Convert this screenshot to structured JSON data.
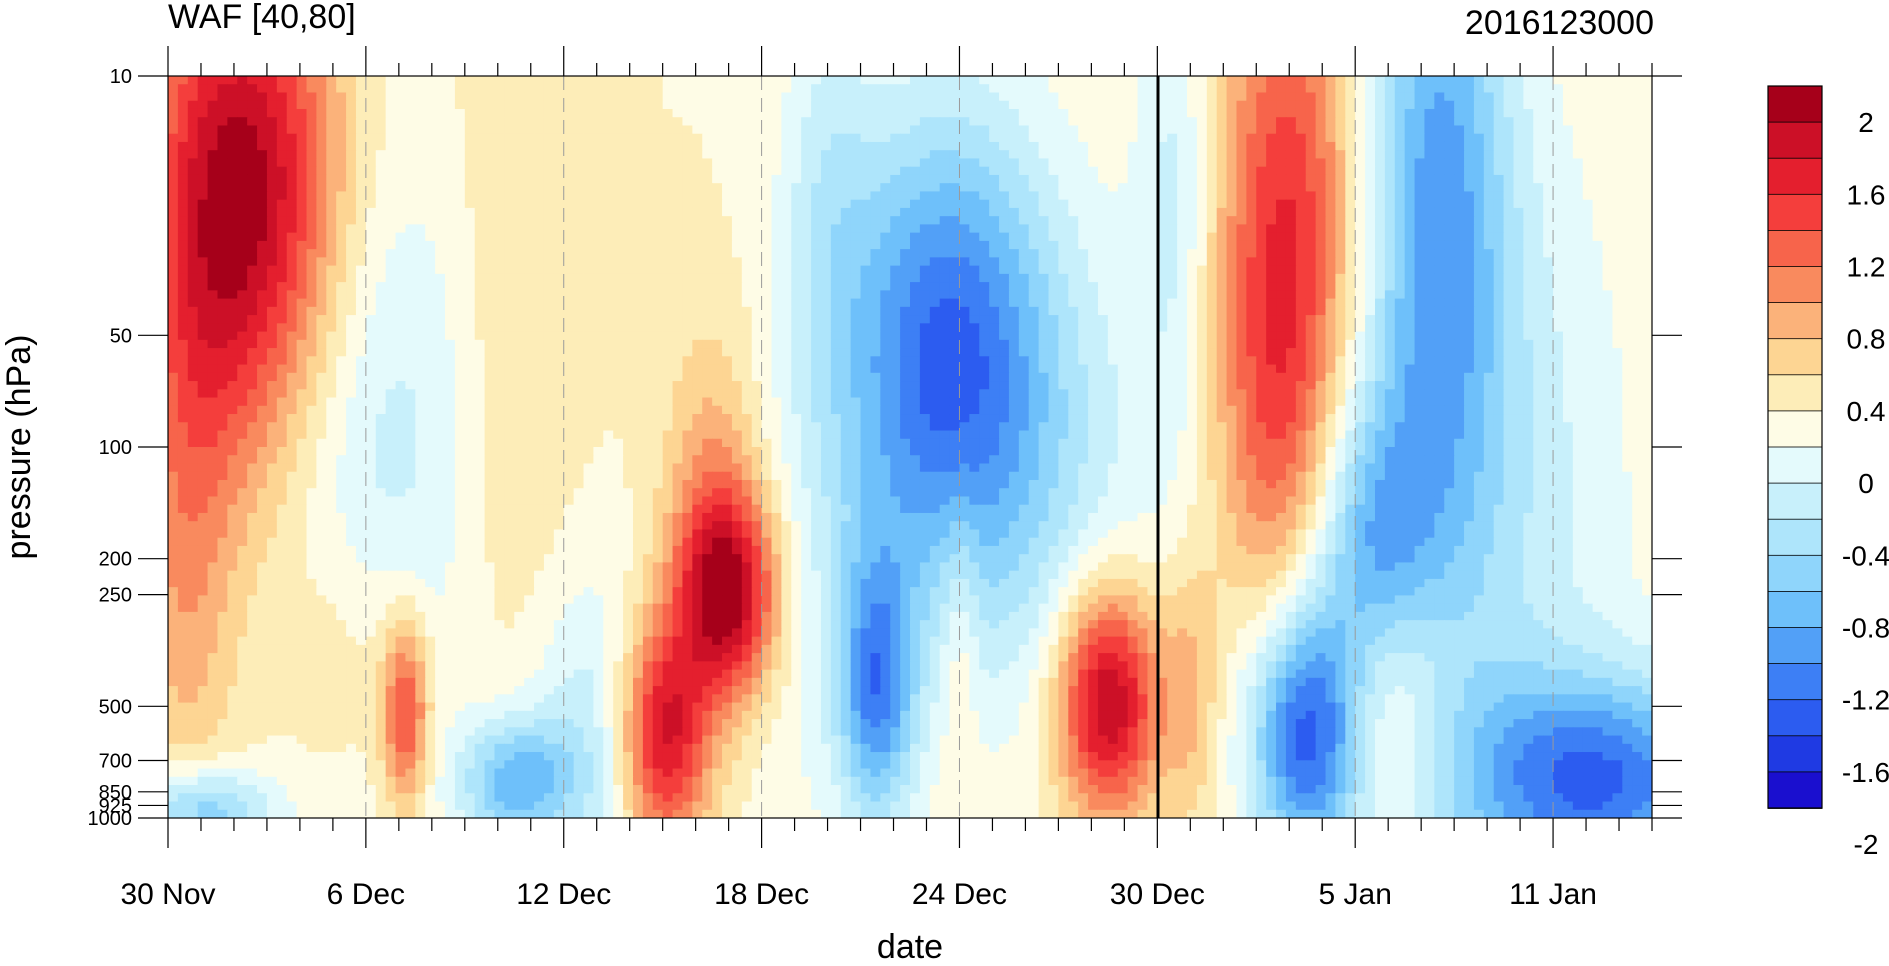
{
  "chart_data": {
    "type": "heatmap",
    "subtype": "filled-contour",
    "title": "WAF [40,80]",
    "timestamp_label": "2016123000",
    "xlabel": "date",
    "ylabel": "pressure (hPa)",
    "x_tick_labels": [
      "30 Nov",
      "6 Dec",
      "12 Dec",
      "18 Dec",
      "24 Dec",
      "30 Dec",
      "5 Jan",
      "11 Jan"
    ],
    "x_tick_days": [
      0,
      6,
      12,
      18,
      24,
      30,
      36,
      42
    ],
    "x_range_days": [
      0,
      45
    ],
    "y_tick_labels": [
      "10",
      "50",
      "100",
      "200",
      "250",
      "500",
      "700",
      "850",
      "925",
      "1000"
    ],
    "y_tick_values": [
      10,
      50,
      100,
      200,
      250,
      500,
      700,
      850,
      925,
      1000
    ],
    "y_range": [
      10,
      1000
    ],
    "y_scale": "log",
    "y_reversed": true,
    "colorbar": {
      "tick_labels": [
        "2",
        "1.6",
        "1.2",
        "0.8",
        "0.4",
        "0",
        "-0.4",
        "-0.8",
        "-1.2",
        "-1.6",
        "-2"
      ],
      "levels": [
        -2.2,
        -2.0,
        -1.8,
        -1.6,
        -1.4,
        -1.2,
        -1.0,
        -0.8,
        -0.6,
        -0.4,
        -0.2,
        0,
        0.2,
        0.4,
        0.6,
        0.8,
        1.0,
        1.2,
        1.4,
        1.6,
        1.8,
        2.0,
        2.2
      ],
      "colors": [
        "#1a0fcf",
        "#1f3ae3",
        "#2c5cf0",
        "#3d7ff5",
        "#52a0f7",
        "#6ec0fa",
        "#8fd5fb",
        "#aee5fb",
        "#c8f0fb",
        "#e4fafc",
        "#fefce6",
        "#fdedb8",
        "#fdd593",
        "#fbb27a",
        "#f98a5e",
        "#f7644b",
        "#f43e3c",
        "#e41f2e",
        "#cc1027",
        "#a6001a"
      ]
    },
    "blobs": [
      {
        "cx": 1.0,
        "cy": 30,
        "sx": 1.5,
        "sy": 0.55,
        "a": 0.9
      },
      {
        "cx": 3.0,
        "cy": 20,
        "sx": 1.8,
        "sy": 0.45,
        "a": 1.3
      },
      {
        "cx": 0.5,
        "cy": 250,
        "sx": 1.0,
        "sy": 0.45,
        "a": 0.4
      },
      {
        "cx": 5.5,
        "cy": 350,
        "sx": 1.3,
        "sy": 0.25,
        "a": 0.3
      },
      {
        "cx": 7.2,
        "cy": 520,
        "sx": 0.5,
        "sy": 0.18,
        "a": 1.15
      },
      {
        "cx": 10.5,
        "cy": 40,
        "sx": 1.2,
        "sy": 0.9,
        "a": 0.22
      },
      {
        "cx": 15.0,
        "cy": 600,
        "sx": 1.0,
        "sy": 0.22,
        "a": 1.6
      },
      {
        "cx": 17.0,
        "cy": 250,
        "sx": 1.1,
        "sy": 0.2,
        "a": 1.7
      },
      {
        "cx": 16.5,
        "cy": 120,
        "sx": 1.0,
        "sy": 0.3,
        "a": 0.5
      },
      {
        "cx": 24.0,
        "cy": 300,
        "sx": 0.4,
        "sy": 0.25,
        "a": 0.35
      },
      {
        "cx": 28.5,
        "cy": 480,
        "sx": 1.1,
        "sy": 0.22,
        "a": 1.75
      },
      {
        "cx": 34.0,
        "cy": 25,
        "sx": 1.5,
        "sy": 0.55,
        "a": 1.15
      },
      {
        "cx": 33.5,
        "cy": 100,
        "sx": 1.2,
        "sy": 0.4,
        "a": 0.5
      },
      {
        "cx": 31.0,
        "cy": 450,
        "sx": 0.6,
        "sy": 0.25,
        "a": 0.45
      },
      {
        "cx": 37.0,
        "cy": 450,
        "sx": 1.2,
        "sy": 0.25,
        "a": 0.65
      },
      {
        "cx": 23.5,
        "cy": 55,
        "sx": 2.2,
        "sy": 0.45,
        "a": -1.5
      },
      {
        "cx": 20.0,
        "cy": 20,
        "sx": 1.0,
        "sy": 0.4,
        "a": -0.4
      },
      {
        "cx": 34.5,
        "cy": 600,
        "sx": 1.2,
        "sy": 0.25,
        "a": -1.65
      },
      {
        "cx": 43.5,
        "cy": 800,
        "sx": 3.0,
        "sy": 0.2,
        "a": -1.5
      },
      {
        "cx": 38.5,
        "cy": 20,
        "sx": 1.5,
        "sy": 0.7,
        "a": -1.1
      },
      {
        "cx": 36.5,
        "cy": 200,
        "sx": 1.3,
        "sy": 0.3,
        "a": -1.0
      },
      {
        "cx": 21.5,
        "cy": 450,
        "sx": 0.8,
        "sy": 0.25,
        "a": -1.25
      },
      {
        "cx": 10.5,
        "cy": 800,
        "sx": 1.2,
        "sy": 0.12,
        "a": -1.1
      },
      {
        "cx": 1.0,
        "cy": 950,
        "sx": 1.5,
        "sy": 0.08,
        "a": -1.0
      },
      {
        "cx": 6.5,
        "cy": 100,
        "sx": 2.0,
        "sy": 0.6,
        "a": -0.5
      },
      {
        "cx": 13.0,
        "cy": 600,
        "sx": 1.5,
        "sy": 0.3,
        "a": -0.6
      },
      {
        "cx": 40.0,
        "cy": 150,
        "sx": 3.0,
        "sy": 0.8,
        "a": -0.55
      },
      {
        "cx": 20.0,
        "cy": 250,
        "sx": 2.0,
        "sy": 0.5,
        "a": -0.3
      },
      {
        "cx": 26.5,
        "cy": 120,
        "sx": 2.5,
        "sy": 0.5,
        "a": -0.5
      },
      {
        "cx": 30.5,
        "cy": 20,
        "sx": 0.8,
        "sy": 0.5,
        "a": -0.45
      }
    ]
  }
}
